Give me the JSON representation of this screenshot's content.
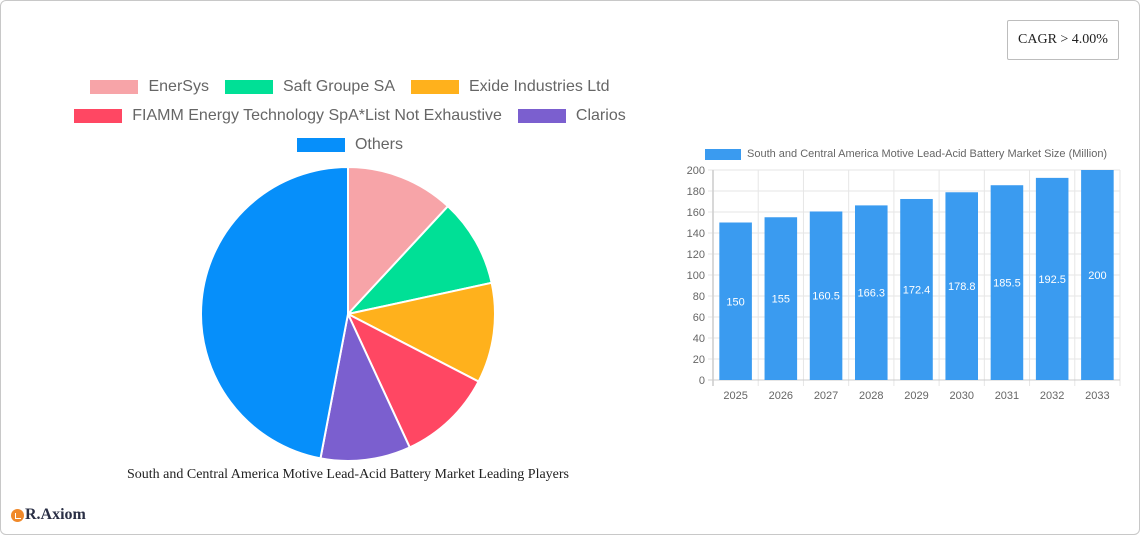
{
  "badge": {
    "cagr_label": "CAGR > 4.00%"
  },
  "logo": {
    "text": "R.Axiom"
  },
  "pie": {
    "title": "South and Central America Motive Lead-Acid Battery Market Leading Players",
    "legend": [
      {
        "label": "EnerSys",
        "color": "#f7a4a8"
      },
      {
        "label": "Saft Groupe SA",
        "color": "#00e096"
      },
      {
        "label": "Exide Industries Ltd",
        "color": "#ffb11c"
      },
      {
        "label": "FIAMM Energy Technology SpA*List Not Exhaustive",
        "color": "#ff4763"
      },
      {
        "label": "Clarios",
        "color": "#7b5fcf"
      },
      {
        "label": "Others",
        "color": "#068ffa"
      }
    ]
  },
  "bar": {
    "legend_label": "South and Central America Motive Lead-Acid Battery Market Size (Million)",
    "color": "#3a9bf0"
  },
  "chart_data": [
    {
      "type": "pie",
      "title": "South and Central America Motive Lead-Acid Battery Market Leading Players",
      "categories": [
        "EnerSys",
        "Saft Groupe SA",
        "Exide Industries Ltd",
        "FIAMM Energy Technology SpA*List Not Exhaustive",
        "Clarios",
        "Others"
      ],
      "values": [
        11.9,
        9.7,
        11.0,
        10.5,
        9.9,
        47.0
      ],
      "colors": [
        "#f7a4a8",
        "#00e096",
        "#ffb11c",
        "#ff4763",
        "#7b5fcf",
        "#068ffa"
      ],
      "legend_position": "top",
      "start_angle": "12 o'clock, clockwise"
    },
    {
      "type": "bar",
      "title": "",
      "legend": [
        "South and Central America Motive Lead-Acid Battery Market Size (Million)"
      ],
      "categories": [
        "2025",
        "2026",
        "2027",
        "2028",
        "2029",
        "2030",
        "2031",
        "2032",
        "2033"
      ],
      "series": [
        {
          "name": "South and Central America Motive Lead-Acid Battery Market Size (Million)",
          "values": [
            150,
            155,
            160.5,
            166.3,
            172.4,
            178.8,
            185.5,
            192.5,
            200
          ]
        }
      ],
      "data_labels": [
        "150",
        "155",
        "160.5",
        "166.3",
        "172.4",
        "178.8",
        "185.5",
        "192.5",
        "200"
      ],
      "xlabel": "",
      "ylabel": "",
      "ylim": [
        0,
        200
      ],
      "yticks": [
        0,
        20,
        40,
        60,
        80,
        100,
        120,
        140,
        160,
        180,
        200
      ],
      "grid": true,
      "legend_position": "top"
    }
  ]
}
